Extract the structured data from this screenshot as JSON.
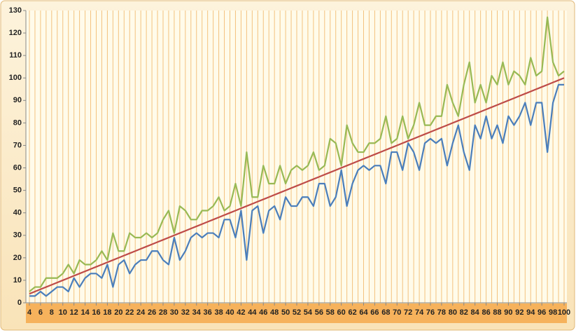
{
  "chart_data": {
    "type": "line",
    "x": [
      4,
      5,
      6,
      7,
      8,
      9,
      10,
      11,
      12,
      13,
      14,
      15,
      16,
      17,
      18,
      19,
      20,
      21,
      22,
      23,
      24,
      25,
      26,
      27,
      28,
      29,
      30,
      31,
      32,
      33,
      34,
      35,
      36,
      37,
      38,
      39,
      40,
      41,
      42,
      43,
      44,
      45,
      46,
      47,
      48,
      49,
      50,
      51,
      52,
      53,
      54,
      55,
      56,
      57,
      58,
      59,
      60,
      61,
      62,
      63,
      64,
      65,
      66,
      67,
      68,
      69,
      70,
      71,
      72,
      73,
      74,
      75,
      76,
      77,
      78,
      79,
      80,
      81,
      82,
      83,
      84,
      85,
      86,
      87,
      88,
      89,
      90,
      91,
      92,
      93,
      94,
      95,
      96,
      97,
      98,
      99,
      100
    ],
    "xlim": [
      4,
      100
    ],
    "xticks": [
      4,
      6,
      8,
      10,
      12,
      14,
      16,
      18,
      20,
      22,
      24,
      26,
      28,
      30,
      32,
      34,
      36,
      38,
      40,
      42,
      44,
      46,
      48,
      50,
      52,
      54,
      56,
      58,
      60,
      62,
      64,
      66,
      68,
      70,
      72,
      74,
      76,
      78,
      80,
      82,
      84,
      86,
      88,
      90,
      92,
      94,
      96,
      98,
      100
    ],
    "ylim": [
      0,
      130
    ],
    "yticks": [
      0,
      10,
      20,
      30,
      40,
      50,
      60,
      70,
      80,
      90,
      100,
      110,
      120,
      130
    ],
    "grid": true,
    "series": [
      {
        "color": "#4a7ebb",
        "values": [
          3,
          3,
          5,
          3,
          5,
          7,
          7,
          5,
          11,
          7,
          11,
          13,
          13,
          11,
          17,
          7,
          17,
          19,
          13,
          17,
          19,
          19,
          23,
          23,
          19,
          17,
          29,
          19,
          23,
          29,
          31,
          29,
          31,
          31,
          29,
          37,
          37,
          29,
          41,
          19,
          41,
          43,
          31,
          41,
          43,
          37,
          47,
          43,
          43,
          47,
          47,
          43,
          53,
          53,
          43,
          47,
          59,
          43,
          53,
          59,
          61,
          59,
          61,
          61,
          53,
          67,
          67,
          59,
          71,
          67,
          59,
          71,
          73,
          71,
          73,
          61,
          71,
          79,
          67,
          59,
          79,
          73,
          83,
          73,
          79,
          71,
          83,
          79,
          83,
          89,
          79,
          89,
          89,
          67,
          89,
          97,
          97
        ]
      },
      {
        "color": "#98b954",
        "values": [
          5,
          7,
          7,
          11,
          11,
          11,
          13,
          17,
          13,
          19,
          17,
          17,
          19,
          23,
          19,
          31,
          23,
          23,
          31,
          29,
          29,
          31,
          29,
          31,
          37,
          41,
          31,
          43,
          41,
          37,
          37,
          41,
          41,
          43,
          47,
          41,
          43,
          53,
          43,
          67,
          47,
          47,
          61,
          53,
          53,
          61,
          53,
          59,
          61,
          59,
          61,
          67,
          59,
          61,
          73,
          71,
          61,
          79,
          71,
          67,
          67,
          71,
          71,
          73,
          83,
          71,
          73,
          83,
          73,
          79,
          89,
          79,
          79,
          83,
          83,
          97,
          89,
          83,
          97,
          107,
          89,
          97,
          89,
          101,
          97,
          107,
          97,
          103,
          101,
          97,
          109,
          101,
          103,
          127,
          107,
          101,
          103
        ]
      },
      {
        "color": "#be4b48",
        "values": [
          4,
          5,
          6,
          7,
          8,
          9,
          10,
          11,
          12,
          13,
          14,
          15,
          16,
          17,
          18,
          19,
          20,
          21,
          22,
          23,
          24,
          25,
          26,
          27,
          28,
          29,
          30,
          31,
          32,
          33,
          34,
          35,
          36,
          37,
          38,
          39,
          40,
          41,
          42,
          43,
          44,
          45,
          46,
          47,
          48,
          49,
          50,
          51,
          52,
          53,
          54,
          55,
          56,
          57,
          58,
          59,
          60,
          61,
          62,
          63,
          64,
          65,
          66,
          67,
          68,
          69,
          70,
          71,
          72,
          73,
          74,
          75,
          76,
          77,
          78,
          79,
          80,
          81,
          82,
          83,
          84,
          85,
          86,
          87,
          88,
          89,
          90,
          91,
          92,
          93,
          94,
          95,
          96,
          97,
          98,
          99,
          100
        ]
      }
    ]
  }
}
